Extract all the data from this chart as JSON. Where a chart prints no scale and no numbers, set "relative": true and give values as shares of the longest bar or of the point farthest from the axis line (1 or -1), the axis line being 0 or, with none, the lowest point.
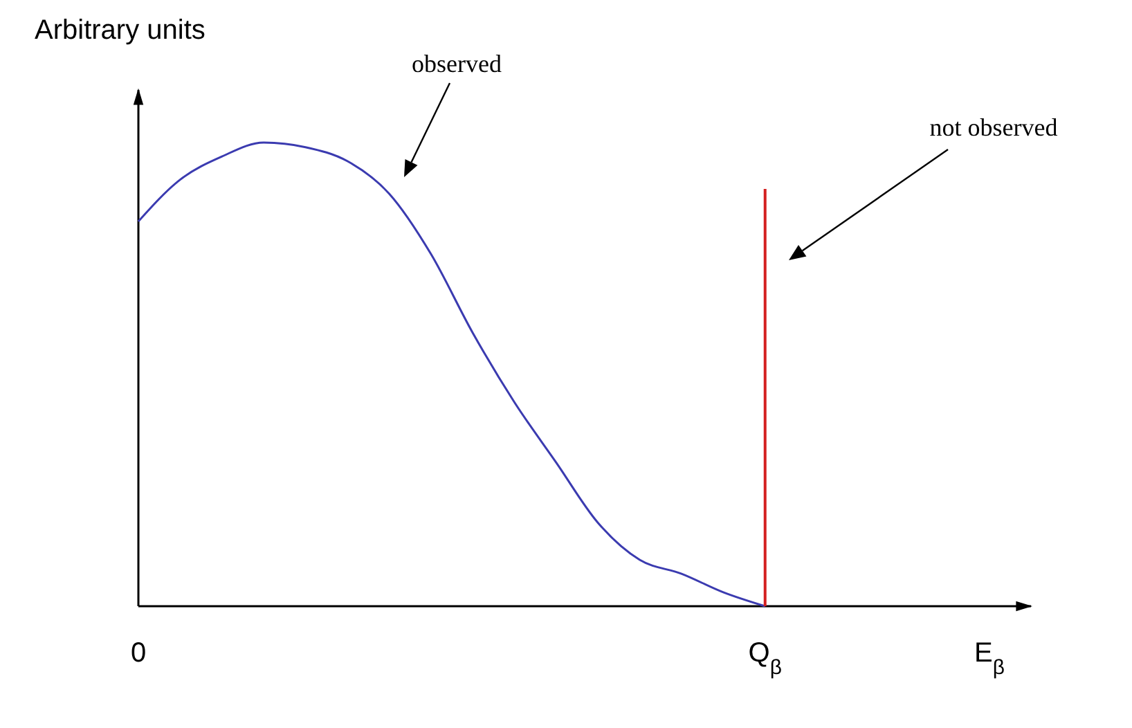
{
  "chart_data": {
    "type": "line",
    "relative": true,
    "ylabel": "Arbitrary units",
    "xlabel": "E$_{β}$",
    "categories": [
      "0",
      null,
      null,
      null,
      null,
      null,
      null,
      null,
      null,
      null,
      null,
      null,
      null,
      null,
      null,
      "Q$_{β}$",
      null,
      null,
      null,
      null,
      null,
      null
    ],
    "grid": false,
    "legend": false,
    "marker": "none",
    "line_style": "solid",
    "series": [
      {
        "color": "#3b3bb0",
        "values": [
          0.83,
          0.92,
          0.97,
          1,
          0.99,
          0.96,
          0.89,
          0.76,
          0.59,
          0.44,
          0.31,
          0.18,
          0.1,
          0.07,
          0.03,
          0,
          null,
          null,
          null,
          null,
          null,
          null
        ]
      },
      {
        "type": "bar",
        "color": "#d42020",
        "values": [
          null,
          null,
          null,
          null,
          null,
          null,
          null,
          null,
          null,
          null,
          null,
          null,
          null,
          null,
          null,
          0.9,
          null,
          null,
          null,
          null,
          null,
          null
        ]
      }
    ],
    "annotations": [
      "observed",
      "not observed"
    ]
  }
}
